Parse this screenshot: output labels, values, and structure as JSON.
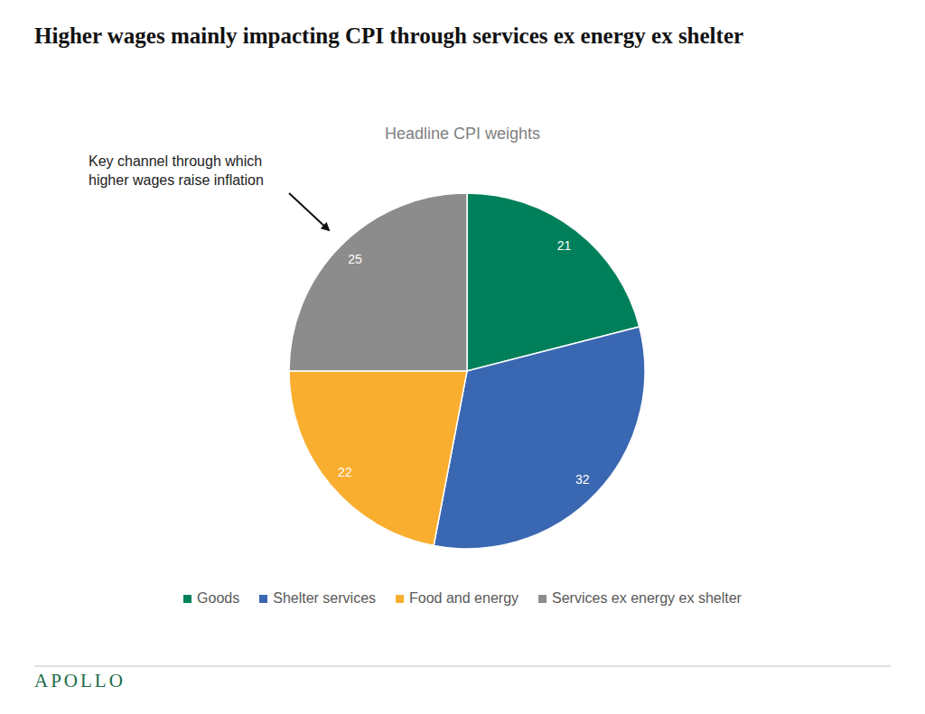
{
  "chart_data": {
    "type": "pie",
    "title": "Higher wages mainly impacting CPI through services ex energy ex shelter",
    "subtitle": "Headline CPI weights",
    "categories": [
      "Goods",
      "Shelter services",
      "Food and energy",
      "Services ex energy ex shelter"
    ],
    "values": [
      21,
      32,
      22,
      25
    ],
    "colors": [
      "#00805a",
      "#3a67b1",
      "#f9ae2f",
      "#8c8c8c"
    ],
    "data_labels": true,
    "legend": "bottom",
    "annotation": "Key channel through which higher wages raise inflation",
    "logo": "APOLLO"
  }
}
